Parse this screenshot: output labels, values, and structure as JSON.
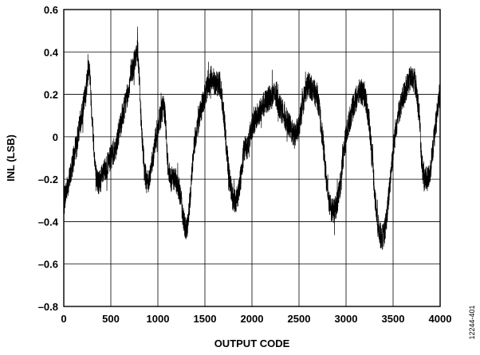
{
  "chart_data": {
    "type": "line",
    "xlabel": "OUTPUT CODE",
    "ylabel": "INL (LSB)",
    "xlim": [
      0,
      4000
    ],
    "ylim": [
      -0.8,
      0.6
    ],
    "xticks": [
      0,
      500,
      1000,
      1500,
      2000,
      2500,
      3000,
      3500,
      4000
    ],
    "yticks": [
      0.6,
      0.4,
      0.2,
      0,
      -0.2,
      -0.4,
      -0.6,
      -0.8
    ],
    "ytick_labels": [
      "0.6",
      "0.4",
      "0.2",
      "0",
      "–0.2",
      "–0.4",
      "–0.6",
      "–0.8"
    ],
    "grid": true,
    "line_color": "#000000",
    "series": [
      {
        "x": [
          0,
          60,
          150,
          230,
          270,
          300,
          340,
          370,
          450,
          550,
          650,
          720,
          770,
          785,
          800,
          830,
          860,
          880,
          920,
          980,
          1020,
          1060,
          1080,
          1100,
          1130,
          1180,
          1230,
          1260,
          1300,
          1320,
          1350,
          1380,
          1420,
          1470,
          1520,
          1570,
          1620,
          1660,
          1690,
          1720,
          1760,
          1800,
          1830,
          1860,
          1890,
          1920,
          1950,
          2000,
          2060,
          2120,
          2180,
          2240,
          2290,
          2340,
          2400,
          2450,
          2500,
          2540,
          2560,
          2600,
          2650,
          2700,
          2750,
          2790,
          2820,
          2850,
          2880,
          2910,
          2940,
          2980,
          3020,
          3080,
          3150,
          3210,
          3250,
          3280,
          3310,
          3340,
          3380,
          3410,
          3440,
          3480,
          3530,
          3580,
          3630,
          3690,
          3740,
          3780,
          3800,
          3830,
          3870,
          3900,
          3950,
          4000
        ],
        "y": [
          -0.3,
          -0.2,
          0.0,
          0.2,
          0.35,
          0.1,
          -0.18,
          -0.22,
          -0.15,
          -0.05,
          0.15,
          0.3,
          0.38,
          0.42,
          0.3,
          0.0,
          -0.15,
          -0.22,
          -0.18,
          0.0,
          0.08,
          0.15,
          0.08,
          -0.1,
          -0.2,
          -0.2,
          -0.25,
          -0.35,
          -0.45,
          -0.42,
          -0.25,
          -0.05,
          0.05,
          0.15,
          0.22,
          0.28,
          0.25,
          0.25,
          0.15,
          0.0,
          -0.2,
          -0.3,
          -0.3,
          -0.25,
          -0.15,
          -0.05,
          -0.05,
          0.05,
          0.1,
          0.15,
          0.18,
          0.2,
          0.15,
          0.1,
          0.05,
          0.0,
          0.05,
          0.15,
          0.2,
          0.25,
          0.22,
          0.18,
          0.0,
          -0.2,
          -0.3,
          -0.35,
          -0.35,
          -0.3,
          -0.22,
          -0.05,
          0.05,
          0.15,
          0.22,
          0.18,
          0.05,
          -0.1,
          -0.3,
          -0.42,
          -0.48,
          -0.45,
          -0.35,
          -0.15,
          0.05,
          0.15,
          0.22,
          0.28,
          0.25,
          0.1,
          -0.1,
          -0.2,
          -0.2,
          -0.15,
          0.05,
          0.22
        ]
      }
    ]
  },
  "figure_code": "12244-401"
}
